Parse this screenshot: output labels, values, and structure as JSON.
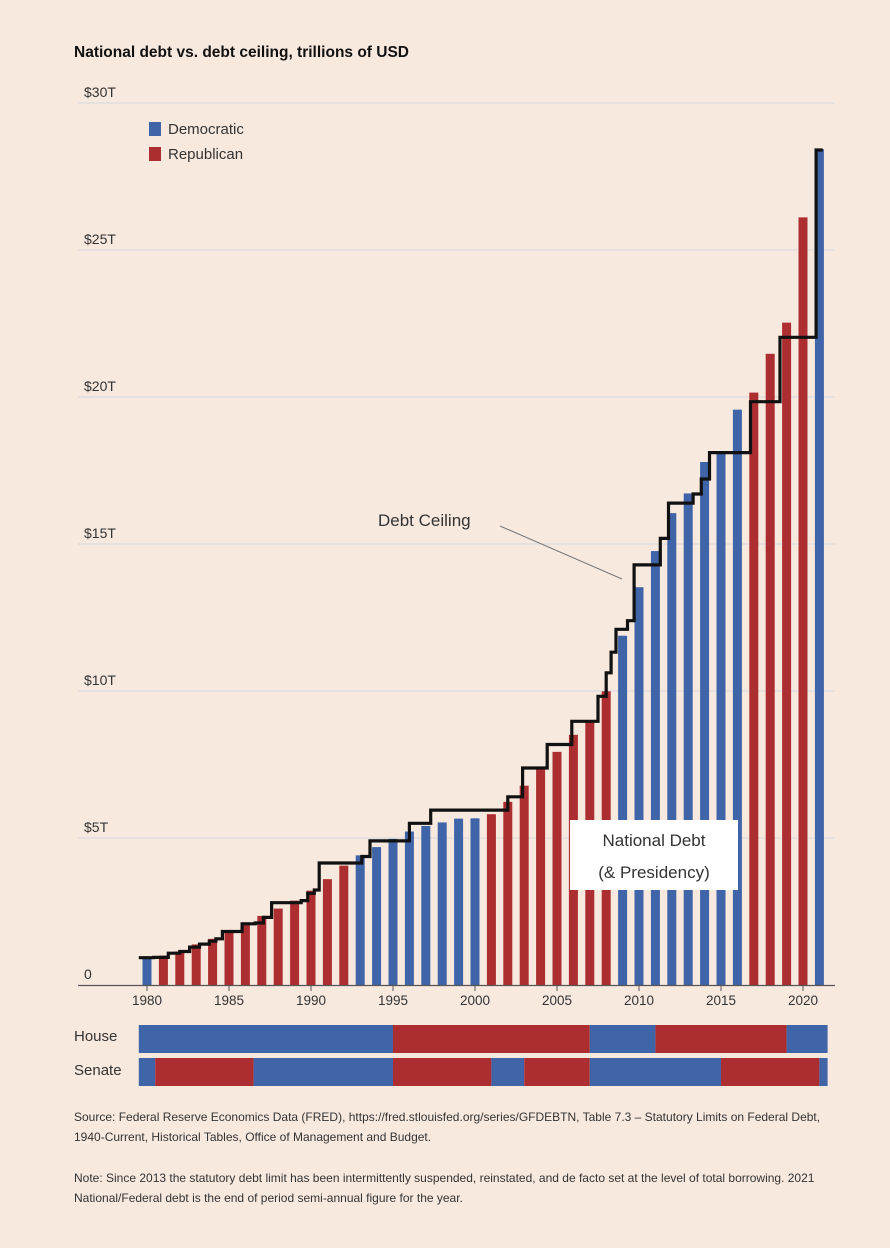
{
  "title": "National debt vs. debt ceiling, trillions of USD",
  "colors": {
    "democratic": "#3f64a8",
    "republican": "#ad2e31",
    "background": "#f8e9df",
    "ceiling": "#111111",
    "grid": "#d3d6dc"
  },
  "chart_data": {
    "type": "bar",
    "title": "National debt vs. debt ceiling, trillions of USD",
    "xlabel": "",
    "ylabel": "",
    "ylim": [
      0,
      30
    ],
    "y_ticks": [
      {
        "value": 0,
        "label": "0"
      },
      {
        "value": 5,
        "label": "$5T"
      },
      {
        "value": 10,
        "label": "$10T"
      },
      {
        "value": 15,
        "label": "$15T"
      },
      {
        "value": 20,
        "label": "$20T"
      },
      {
        "value": 25,
        "label": "$25T"
      },
      {
        "value": 30,
        "label": "$30T"
      }
    ],
    "x_ticks": [
      "1980",
      "1985",
      "1990",
      "1995",
      "2000",
      "2005",
      "2010",
      "2015",
      "2020"
    ],
    "legend": {
      "placement": "top-left",
      "entries": [
        {
          "label": "Democratic",
          "color": "#3f64a8"
        },
        {
          "label": "Republican",
          "color": "#ad2e31"
        }
      ]
    },
    "national_debt": [
      {
        "year": 1980,
        "value": 0.91,
        "party": "Democratic"
      },
      {
        "year": 1981,
        "value": 1.0,
        "party": "Republican"
      },
      {
        "year": 1982,
        "value": 1.14,
        "party": "Republican"
      },
      {
        "year": 1983,
        "value": 1.38,
        "party": "Republican"
      },
      {
        "year": 1984,
        "value": 1.57,
        "party": "Republican"
      },
      {
        "year": 1985,
        "value": 1.82,
        "party": "Republican"
      },
      {
        "year": 1986,
        "value": 2.13,
        "party": "Republican"
      },
      {
        "year": 1987,
        "value": 2.35,
        "party": "Republican"
      },
      {
        "year": 1988,
        "value": 2.6,
        "party": "Republican"
      },
      {
        "year": 1989,
        "value": 2.87,
        "party": "Republican"
      },
      {
        "year": 1990,
        "value": 3.21,
        "party": "Republican"
      },
      {
        "year": 1991,
        "value": 3.6,
        "party": "Republican"
      },
      {
        "year": 1992,
        "value": 4.06,
        "party": "Republican"
      },
      {
        "year": 1993,
        "value": 4.41,
        "party": "Democratic"
      },
      {
        "year": 1994,
        "value": 4.69,
        "party": "Democratic"
      },
      {
        "year": 1995,
        "value": 4.97,
        "party": "Democratic"
      },
      {
        "year": 1996,
        "value": 5.22,
        "party": "Democratic"
      },
      {
        "year": 1997,
        "value": 5.41,
        "party": "Democratic"
      },
      {
        "year": 1998,
        "value": 5.53,
        "party": "Democratic"
      },
      {
        "year": 1999,
        "value": 5.66,
        "party": "Democratic"
      },
      {
        "year": 2000,
        "value": 5.67,
        "party": "Democratic"
      },
      {
        "year": 2001,
        "value": 5.81,
        "party": "Republican"
      },
      {
        "year": 2002,
        "value": 6.23,
        "party": "Republican"
      },
      {
        "year": 2003,
        "value": 6.78,
        "party": "Republican"
      },
      {
        "year": 2004,
        "value": 7.38,
        "party": "Republican"
      },
      {
        "year": 2005,
        "value": 7.93,
        "party": "Republican"
      },
      {
        "year": 2006,
        "value": 8.51,
        "party": "Republican"
      },
      {
        "year": 2007,
        "value": 8.95,
        "party": "Republican"
      },
      {
        "year": 2008,
        "value": 9.99,
        "party": "Republican"
      },
      {
        "year": 2009,
        "value": 11.88,
        "party": "Democratic"
      },
      {
        "year": 2010,
        "value": 13.53,
        "party": "Democratic"
      },
      {
        "year": 2011,
        "value": 14.76,
        "party": "Democratic"
      },
      {
        "year": 2012,
        "value": 16.05,
        "party": "Democratic"
      },
      {
        "year": 2013,
        "value": 16.72,
        "party": "Democratic"
      },
      {
        "year": 2014,
        "value": 17.79,
        "party": "Democratic"
      },
      {
        "year": 2015,
        "value": 18.14,
        "party": "Democratic"
      },
      {
        "year": 2016,
        "value": 19.57,
        "party": "Democratic"
      },
      {
        "year": 2017,
        "value": 20.15,
        "party": "Republican"
      },
      {
        "year": 2018,
        "value": 21.47,
        "party": "Republican"
      },
      {
        "year": 2019,
        "value": 22.53,
        "party": "Republican"
      },
      {
        "year": 2020,
        "value": 26.11,
        "party": "Republican"
      },
      {
        "year": 2021,
        "value": 28.43,
        "party": "Democratic"
      }
    ],
    "debt_ceiling": [
      [
        1979.5,
        0.93
      ],
      [
        1980.4,
        0.93
      ],
      [
        1980.4,
        0.94
      ],
      [
        1981.3,
        0.94
      ],
      [
        1981.3,
        1.08
      ],
      [
        1982.0,
        1.08
      ],
      [
        1982.0,
        1.14
      ],
      [
        1982.6,
        1.14
      ],
      [
        1982.6,
        1.29
      ],
      [
        1983.2,
        1.29
      ],
      [
        1983.2,
        1.39
      ],
      [
        1983.8,
        1.39
      ],
      [
        1983.8,
        1.49
      ],
      [
        1984.2,
        1.49
      ],
      [
        1984.2,
        1.57
      ],
      [
        1984.6,
        1.57
      ],
      [
        1984.6,
        1.82
      ],
      [
        1985.8,
        1.82
      ],
      [
        1985.8,
        2.08
      ],
      [
        1986.6,
        2.08
      ],
      [
        1986.6,
        2.11
      ],
      [
        1987.1,
        2.11
      ],
      [
        1987.1,
        2.3
      ],
      [
        1987.6,
        2.3
      ],
      [
        1987.6,
        2.8
      ],
      [
        1989.4,
        2.8
      ],
      [
        1989.4,
        2.87
      ],
      [
        1989.8,
        2.87
      ],
      [
        1989.8,
        3.12
      ],
      [
        1990.2,
        3.12
      ],
      [
        1990.2,
        3.23
      ],
      [
        1990.5,
        3.23
      ],
      [
        1990.5,
        4.15
      ],
      [
        1993.1,
        4.15
      ],
      [
        1993.1,
        4.37
      ],
      [
        1993.6,
        4.37
      ],
      [
        1993.6,
        4.9
      ],
      [
        1996.0,
        4.9
      ],
      [
        1996.0,
        5.5
      ],
      [
        1997.3,
        5.5
      ],
      [
        1997.3,
        5.95
      ],
      [
        2002.0,
        5.95
      ],
      [
        2002.0,
        6.4
      ],
      [
        2002.9,
        6.4
      ],
      [
        2002.9,
        7.38
      ],
      [
        2004.4,
        7.38
      ],
      [
        2004.4,
        8.18
      ],
      [
        2005.9,
        8.18
      ],
      [
        2005.9,
        8.97
      ],
      [
        2007.5,
        8.97
      ],
      [
        2007.5,
        9.82
      ],
      [
        2008.0,
        9.82
      ],
      [
        2008.0,
        10.62
      ],
      [
        2008.3,
        10.62
      ],
      [
        2008.3,
        11.32
      ],
      [
        2008.6,
        11.32
      ],
      [
        2008.6,
        12.1
      ],
      [
        2009.3,
        12.1
      ],
      [
        2009.3,
        12.39
      ],
      [
        2009.7,
        12.39
      ],
      [
        2009.7,
        14.29
      ],
      [
        2011.3,
        14.29
      ],
      [
        2011.3,
        15.19
      ],
      [
        2011.8,
        15.19
      ],
      [
        2011.8,
        16.39
      ],
      [
        2013.3,
        16.39
      ],
      [
        2013.3,
        16.7
      ],
      [
        2013.8,
        16.7
      ],
      [
        2013.8,
        17.21
      ],
      [
        2014.3,
        17.21
      ],
      [
        2014.3,
        18.11
      ],
      [
        2016.8,
        18.11
      ],
      [
        2016.8,
        19.84
      ],
      [
        2018.6,
        19.84
      ],
      [
        2018.6,
        22.03
      ],
      [
        2020.8,
        22.03
      ],
      [
        2020.8,
        28.4
      ],
      [
        2021.2,
        28.4
      ],
      [
        2021.2,
        28.4
      ]
    ],
    "annotations": [
      {
        "text": "Debt Ceiling"
      },
      {
        "text_lines": [
          "National Debt",
          "(& Presidency)"
        ]
      }
    ]
  },
  "congress": {
    "house_label": "House",
    "senate_label": "Senate",
    "house": [
      {
        "from": 1979.5,
        "to": 1995.0,
        "party": "Democratic"
      },
      {
        "from": 1995.0,
        "to": 2007.0,
        "party": "Republican"
      },
      {
        "from": 2007.0,
        "to": 2011.0,
        "party": "Democratic"
      },
      {
        "from": 2011.0,
        "to": 2019.0,
        "party": "Republican"
      },
      {
        "from": 2019.0,
        "to": 2021.5,
        "party": "Democratic"
      }
    ],
    "senate": [
      {
        "from": 1979.5,
        "to": 1980.5,
        "party": "Democratic"
      },
      {
        "from": 1980.5,
        "to": 1986.5,
        "party": "Republican"
      },
      {
        "from": 1986.5,
        "to": 1995.0,
        "party": "Democratic"
      },
      {
        "from": 1995.0,
        "to": 2001.0,
        "party": "Republican"
      },
      {
        "from": 2001.0,
        "to": 2003.0,
        "party": "Democratic"
      },
      {
        "from": 2003.0,
        "to": 2007.0,
        "party": "Republican"
      },
      {
        "from": 2007.0,
        "to": 2015.0,
        "party": "Democratic"
      },
      {
        "from": 2015.0,
        "to": 2021.0,
        "party": "Republican"
      },
      {
        "from": 2021.0,
        "to": 2021.5,
        "party": "Democratic"
      }
    ]
  },
  "source_note": "Source: Federal Reserve Economics Data (FRED), https://fred.stlouisfed.org/series/GFDEBTN, Table 7.3 – Statutory Limits on Federal Debt, 1940-Current, Historical Tables, Office of Management and Budget.",
  "foot_note": "Note: Since 2013 the statutory debt limit has been intermittently suspended, reinstated, and de facto set at the level of total borrowing. 2021 National/Federal debt is the end of period semi-annual figure for the year."
}
